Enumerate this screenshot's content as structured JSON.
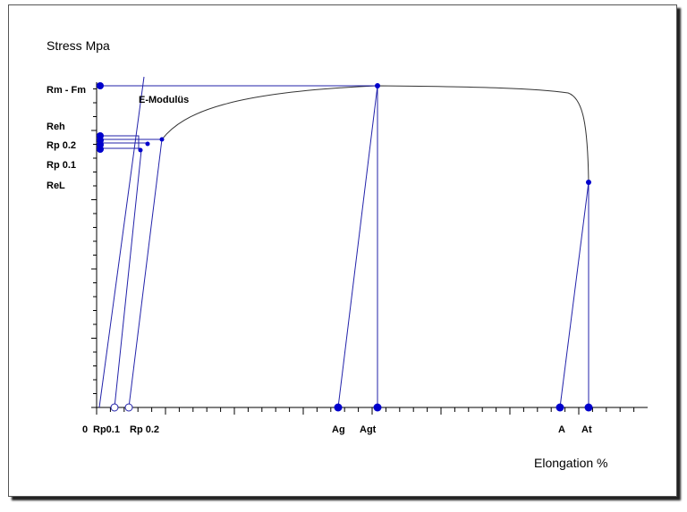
{
  "texts": {
    "y_title": "Stress Mpa",
    "x_title": "Elongation %",
    "e_modulus": "E-Modulüs"
  },
  "y_labels": {
    "rm": "Rm - Fm",
    "reh": "Reh",
    "rp02": "Rp 0.2",
    "rp01": "Rp 0.1",
    "rel": "ReL"
  },
  "x_labels": {
    "zero": "0",
    "rp01": "Rp0.1",
    "rp02": "Rp 0.2",
    "ag": "Ag",
    "agt": "Agt",
    "a": "A",
    "at": "At"
  },
  "colors": {
    "line": "#2222aa",
    "marker": "#0000cc",
    "curve": "#333333",
    "axis": "#000000"
  }
}
